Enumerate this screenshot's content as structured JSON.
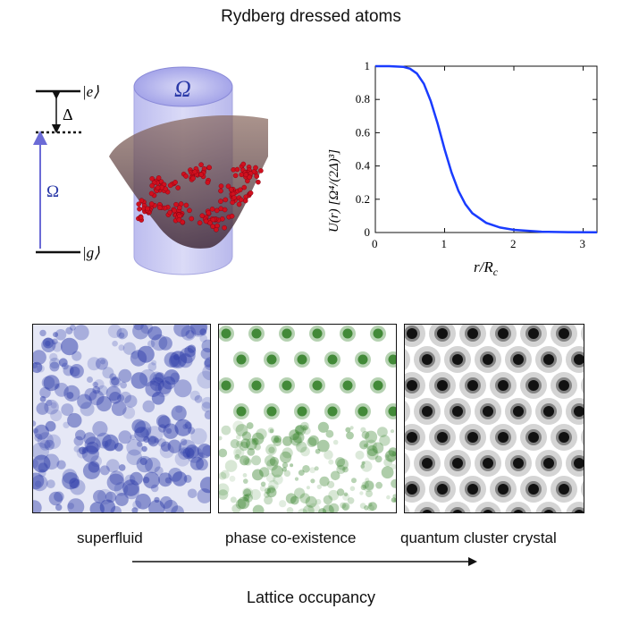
{
  "title": "Rydberg dressed atoms",
  "level_diagram": {
    "excited_label": "|e⟩",
    "ground_label": "|g⟩",
    "detuning_label": "Δ",
    "coupling_label": "Ω",
    "colors": {
      "coupling_arrow": "#6b6bd6",
      "levels": "#111111"
    }
  },
  "trap_illustration": {
    "cylinder_label": "Ω",
    "colors": {
      "cylinder": "#8f8fe0",
      "atoms": "#d0101e",
      "trap": "#6a4a50"
    }
  },
  "chart_data": {
    "type": "line",
    "xlabel": "r/R_c",
    "ylabel": "U(r) [Ω⁴/(2Δ)³]",
    "xlim": [
      0,
      3.2
    ],
    "ylim": [
      0,
      1
    ],
    "xticks": [
      "0",
      "1",
      "2",
      "3"
    ],
    "yticks": [
      "0",
      "0.2",
      "0.4",
      "0.6",
      "0.8",
      "1"
    ],
    "series": [
      {
        "color": "#1a3cff",
        "x": [
          0,
          0.2,
          0.4,
          0.5,
          0.6,
          0.7,
          0.8,
          0.9,
          1.0,
          1.1,
          1.2,
          1.3,
          1.4,
          1.6,
          1.8,
          2.0,
          2.4,
          2.8,
          3.2
        ],
        "y": [
          1.0,
          1.0,
          0.996,
          0.985,
          0.956,
          0.894,
          0.79,
          0.653,
          0.5,
          0.36,
          0.25,
          0.17,
          0.116,
          0.058,
          0.03,
          0.016,
          0.005,
          0.002,
          0.001
        ]
      }
    ]
  },
  "phases": [
    {
      "label": "superfluid",
      "color": "#2b3aa8"
    },
    {
      "label": "phase co-existence",
      "color": "#2e7d22"
    },
    {
      "label": "quantum cluster crystal",
      "color": "#111111"
    }
  ],
  "axis_caption": "Lattice occupancy"
}
